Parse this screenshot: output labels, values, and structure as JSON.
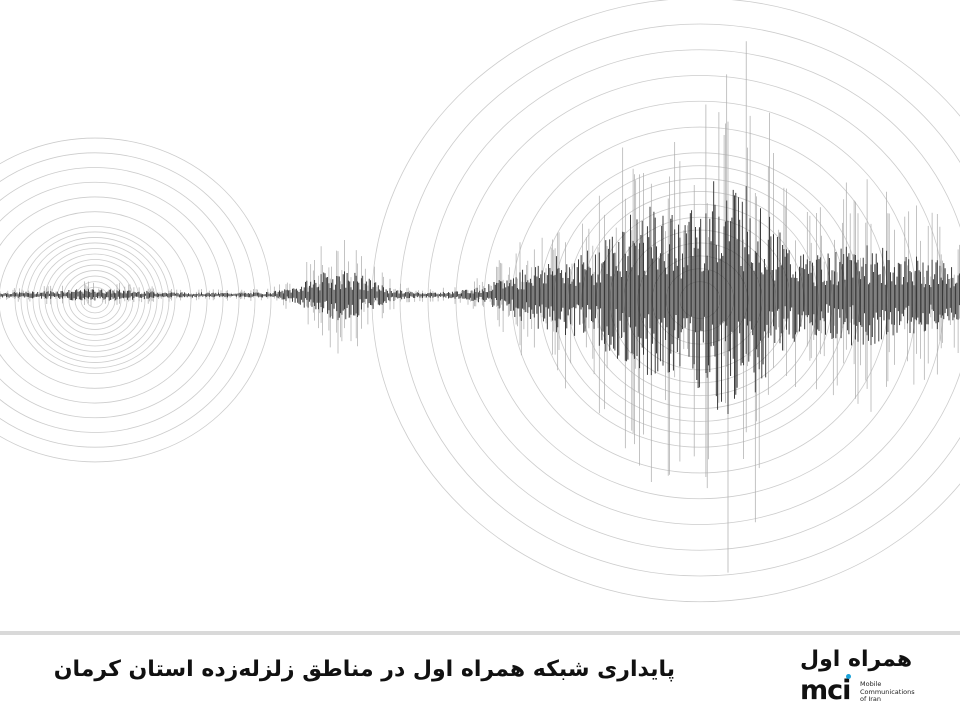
{
  "headline": "پایداری شبکه همراه اول در مناطق زلزله‌زده استان کرمان",
  "logo": {
    "fa_text": "همراه اول",
    "en_text": "mci",
    "sub_lines": [
      "Mobile",
      "Communications",
      "of Iran"
    ],
    "accent_color": "#1aa1d8"
  },
  "image": {
    "subject": "seismograph-waveform-icon"
  }
}
